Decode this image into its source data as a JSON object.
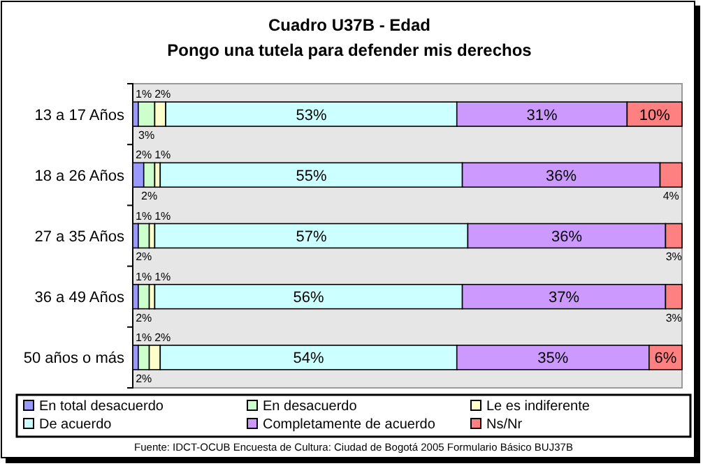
{
  "chart_data": {
    "type": "bar",
    "title": "Cuadro U37B - Edad",
    "subtitle": "Pongo una tutela para defender mis derechos",
    "orientation": "horizontal",
    "stacked": true,
    "legend": "bottom",
    "tick_labels": "y",
    "categories": [
      "13 a 17 Años",
      "18 a 26 Años",
      "27 a 35 Años",
      "36 a 49 Años",
      "50 años o más"
    ],
    "series": [
      {
        "name": "En total desacuerdo",
        "color": "#9999ff",
        "values": [
          1,
          2,
          1,
          1,
          1
        ],
        "value_labels": [
          "1%",
          "2%",
          "1%",
          "1%",
          "1%"
        ]
      },
      {
        "name": "En desacuerdo",
        "color": "#ccffcc",
        "values": [
          3,
          2,
          2,
          2,
          2
        ],
        "value_labels": [
          "3%",
          "2%",
          "2%",
          "2%",
          "2%"
        ]
      },
      {
        "name": "Le es indiferente",
        "color": "#ffffcc",
        "values": [
          2,
          1,
          1,
          1,
          2
        ],
        "value_labels": [
          "2%",
          "1%",
          "1%",
          "1%",
          "2%"
        ]
      },
      {
        "name": "De acuerdo",
        "color": "#ccffff",
        "values": [
          53,
          55,
          57,
          56,
          54
        ],
        "value_labels": [
          "53%",
          "55%",
          "57%",
          "56%",
          "54%"
        ]
      },
      {
        "name": "Completamente de acuerdo",
        "color": "#cc99ff",
        "values": [
          31,
          36,
          36,
          37,
          35
        ],
        "value_labels": [
          "31%",
          "36%",
          "36%",
          "37%",
          "35%"
        ]
      },
      {
        "name": "Ns/Nr",
        "color": "#ff8080",
        "values": [
          10,
          4,
          3,
          3,
          6
        ],
        "value_labels": [
          "10%",
          "4%",
          "3%",
          "3%",
          "6%"
        ]
      }
    ],
    "annotations": [
      "Fuente: IDCT-OCUB Encuesta de Cultura: Ciudad de Bogotá 2005 Formulario Básico BUJ37B"
    ]
  }
}
